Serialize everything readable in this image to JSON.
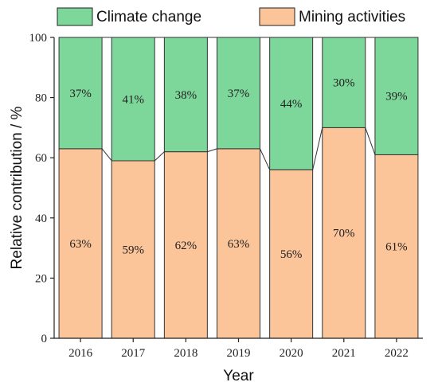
{
  "chart_data": {
    "type": "bar",
    "stacked": true,
    "categories": [
      "2016",
      "2017",
      "2018",
      "2019",
      "2020",
      "2021",
      "2022"
    ],
    "series": [
      {
        "name": "Mining activities",
        "color": "#FCC499",
        "values": [
          63,
          59,
          62,
          63,
          56,
          70,
          61
        ],
        "labels": [
          "63%",
          "59%",
          "62%",
          "63%",
          "56%",
          "70%",
          "61%"
        ]
      },
      {
        "name": "Climate change",
        "color": "#7ED79A",
        "values": [
          37,
          41,
          38,
          37,
          44,
          30,
          39
        ],
        "labels": [
          "37%",
          "41%",
          "38%",
          "37%",
          "44%",
          "30%",
          "39%"
        ]
      }
    ],
    "title": "",
    "xlabel": "Year",
    "ylabel": "Relative contribution / %",
    "ylim": [
      0,
      100
    ],
    "yticks": [
      0,
      20,
      40,
      60,
      80,
      100
    ],
    "legend": [
      {
        "label": "Climate change",
        "color": "#7ED79A"
      },
      {
        "label": "Mining activities",
        "color": "#FCC499"
      }
    ],
    "legend_position": "top",
    "grid": false,
    "connector_lines": true
  }
}
